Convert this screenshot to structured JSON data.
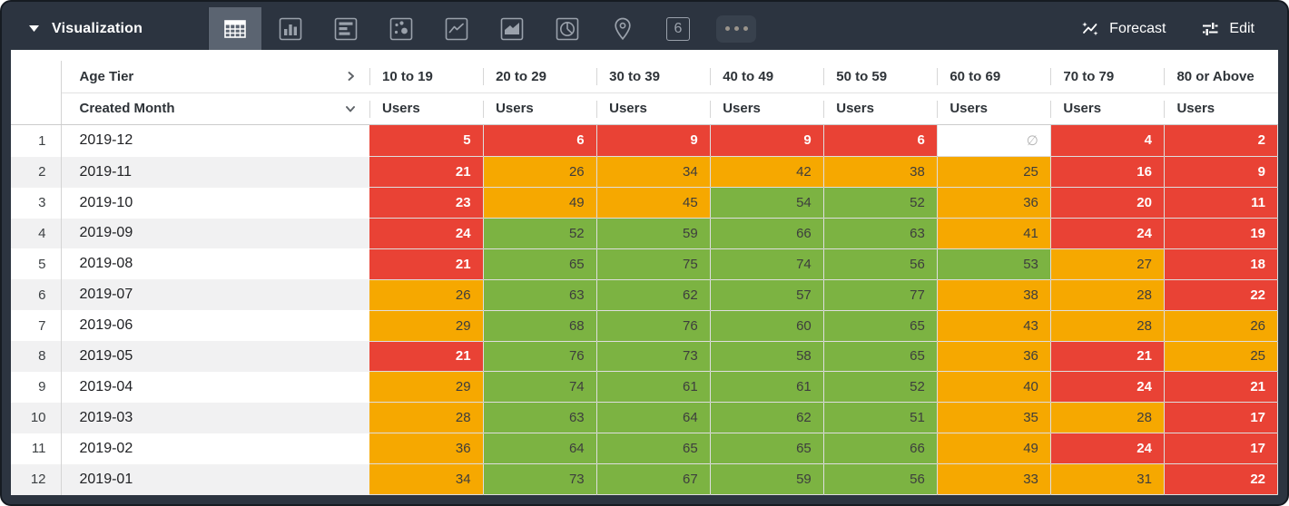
{
  "toolbar": {
    "title": "Visualization",
    "forecast_label": "Forecast",
    "edit_label": "Edit",
    "single_value_glyph": "6",
    "vis_types": [
      "table",
      "column",
      "row",
      "scatter",
      "line",
      "area",
      "pie",
      "map",
      "single-value",
      "more"
    ]
  },
  "colors": {
    "red": "#E94235",
    "orange": "#F6A800",
    "green": "#7CB342",
    "toolbar_bg": "#2C3440",
    "selected_tab_bg": "#5B6471"
  },
  "table": {
    "pivot_field": "Age Tier",
    "row_field": "Created Month",
    "measure_label": "Users",
    "null_symbol": "∅",
    "age_tiers": [
      "10 to 19",
      "20 to 29",
      "30 to 39",
      "40 to 49",
      "50 to 59",
      "60 to 69",
      "70 to 79",
      "80 or Above"
    ],
    "rows": [
      {
        "n": "1",
        "month": "2019-12",
        "values": [
          5,
          6,
          9,
          9,
          6,
          null,
          4,
          2
        ],
        "colors": [
          "r",
          "r",
          "r",
          "r",
          "r",
          "n",
          "r",
          "r"
        ]
      },
      {
        "n": "2",
        "month": "2019-11",
        "values": [
          21,
          26,
          34,
          42,
          38,
          25,
          16,
          9
        ],
        "colors": [
          "r",
          "o",
          "o",
          "o",
          "o",
          "o",
          "r",
          "r"
        ]
      },
      {
        "n": "3",
        "month": "2019-10",
        "values": [
          23,
          49,
          45,
          54,
          52,
          36,
          20,
          11
        ],
        "colors": [
          "r",
          "o",
          "o",
          "g",
          "g",
          "o",
          "r",
          "r"
        ]
      },
      {
        "n": "4",
        "month": "2019-09",
        "values": [
          24,
          52,
          59,
          66,
          63,
          41,
          24,
          19
        ],
        "colors": [
          "r",
          "g",
          "g",
          "g",
          "g",
          "o",
          "r",
          "r"
        ]
      },
      {
        "n": "5",
        "month": "2019-08",
        "values": [
          21,
          65,
          75,
          74,
          56,
          53,
          27,
          18
        ],
        "colors": [
          "r",
          "g",
          "g",
          "g",
          "g",
          "g",
          "o",
          "r"
        ]
      },
      {
        "n": "6",
        "month": "2019-07",
        "values": [
          26,
          63,
          62,
          57,
          77,
          38,
          28,
          22
        ],
        "colors": [
          "o",
          "g",
          "g",
          "g",
          "g",
          "o",
          "o",
          "r"
        ]
      },
      {
        "n": "7",
        "month": "2019-06",
        "values": [
          29,
          68,
          76,
          60,
          65,
          43,
          28,
          26
        ],
        "colors": [
          "o",
          "g",
          "g",
          "g",
          "g",
          "o",
          "o",
          "o"
        ]
      },
      {
        "n": "8",
        "month": "2019-05",
        "values": [
          21,
          76,
          73,
          58,
          65,
          36,
          21,
          25
        ],
        "colors": [
          "r",
          "g",
          "g",
          "g",
          "g",
          "o",
          "r",
          "o"
        ]
      },
      {
        "n": "9",
        "month": "2019-04",
        "values": [
          29,
          74,
          61,
          61,
          52,
          40,
          24,
          21
        ],
        "colors": [
          "o",
          "g",
          "g",
          "g",
          "g",
          "o",
          "r",
          "r"
        ]
      },
      {
        "n": "10",
        "month": "2019-03",
        "values": [
          28,
          63,
          64,
          62,
          51,
          35,
          28,
          17
        ],
        "colors": [
          "o",
          "g",
          "g",
          "g",
          "g",
          "o",
          "o",
          "r"
        ]
      },
      {
        "n": "11",
        "month": "2019-02",
        "values": [
          36,
          64,
          65,
          65,
          66,
          49,
          24,
          17
        ],
        "colors": [
          "o",
          "g",
          "g",
          "g",
          "g",
          "o",
          "r",
          "r"
        ]
      },
      {
        "n": "12",
        "month": "2019-01",
        "values": [
          34,
          73,
          67,
          59,
          56,
          33,
          31,
          22
        ],
        "colors": [
          "o",
          "g",
          "g",
          "g",
          "g",
          "o",
          "o",
          "r"
        ]
      }
    ]
  }
}
